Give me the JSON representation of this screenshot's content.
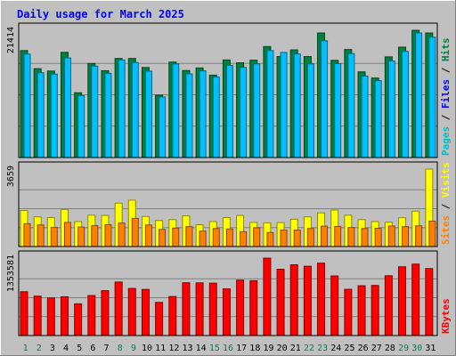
{
  "chart_data": [
    {
      "type": "bar",
      "panel": "hits-files-pages",
      "title": "Daily usage for March 2025",
      "categories": [
        "1",
        "2",
        "3",
        "4",
        "5",
        "6",
        "7",
        "8",
        "9",
        "10",
        "11",
        "12",
        "13",
        "14",
        "15",
        "16",
        "17",
        "18",
        "19",
        "20",
        "21",
        "22",
        "23",
        "24",
        "25",
        "26",
        "27",
        "28",
        "29",
        "30",
        "31"
      ],
      "weekend_days": [
        "1",
        "2",
        "8",
        "9",
        "15",
        "16",
        "22",
        "23",
        "29",
        "30"
      ],
      "ymax": 21414,
      "tick_label": "21414",
      "right_labels": [
        "Pages",
        "Files",
        "Hits"
      ],
      "series": [
        {
          "name": "Hits",
          "color": "#008040",
          "values": [
            18000,
            14950,
            14550,
            17700,
            10900,
            15820,
            14610,
            16670,
            16670,
            15150,
            10500,
            16060,
            14640,
            15070,
            13860,
            16420,
            15940,
            16380,
            18670,
            16990,
            18110,
            16990,
            20960,
            16350,
            18180,
            14420,
            13380,
            16940,
            18570,
            21414,
            20960
          ]
        },
        {
          "name": "Files",
          "color": "#00c0ff",
          "values": [
            17400,
            14270,
            14040,
            16760,
            10400,
            15380,
            14180,
            16420,
            15980,
            14530,
            10190,
            15740,
            14080,
            14590,
            13540,
            15500,
            15160,
            15780,
            18000,
            17680,
            17430,
            15760,
            19640,
            15800,
            17490,
            13710,
            12940,
            16240,
            17860,
            20960,
            20250
          ]
        },
        {
          "name": "Pages",
          "color": "#00c0ff",
          "values": [
            0,
            0,
            0,
            0,
            0,
            0,
            0,
            0,
            0,
            0,
            0,
            0,
            0,
            0,
            0,
            0,
            0,
            0,
            0,
            0,
            0,
            0,
            0,
            0,
            0,
            0,
            0,
            0,
            0,
            0,
            0
          ]
        }
      ]
    },
    {
      "type": "bar",
      "panel": "visits-sites",
      "categories": [
        "1",
        "2",
        "3",
        "4",
        "5",
        "6",
        "7",
        "8",
        "9",
        "10",
        "11",
        "12",
        "13",
        "14",
        "15",
        "16",
        "17",
        "18",
        "19",
        "20",
        "21",
        "22",
        "23",
        "24",
        "25",
        "26",
        "27",
        "28",
        "29",
        "30",
        "31"
      ],
      "ymax": 3659,
      "tick_label": "3659",
      "right_labels": [
        "Sites",
        "Visits"
      ],
      "series": [
        {
          "name": "Visits",
          "color": "#ffff00",
          "values": [
            1700,
            1400,
            1370,
            1750,
            1180,
            1480,
            1470,
            2050,
            2190,
            1420,
            1230,
            1270,
            1450,
            1030,
            1180,
            1370,
            1470,
            1140,
            1120,
            1130,
            1290,
            1400,
            1590,
            1720,
            1480,
            1270,
            1180,
            1150,
            1360,
            1670,
            3659
          ]
        },
        {
          "name": "Sites",
          "color": "#ff8000",
          "values": [
            1080,
            1020,
            900,
            1140,
            920,
            990,
            1030,
            1110,
            1330,
            1020,
            810,
            870,
            940,
            730,
            850,
            830,
            700,
            890,
            660,
            780,
            780,
            850,
            960,
            950,
            900,
            850,
            860,
            970,
            940,
            980,
            1200
          ]
        }
      ]
    },
    {
      "type": "bar",
      "panel": "kbytes",
      "categories": [
        "1",
        "2",
        "3",
        "4",
        "5",
        "6",
        "7",
        "8",
        "9",
        "10",
        "11",
        "12",
        "13",
        "14",
        "15",
        "16",
        "17",
        "18",
        "19",
        "20",
        "21",
        "22",
        "23",
        "24",
        "25",
        "26",
        "27",
        "28",
        "29",
        "30",
        "31"
      ],
      "ymax": 1353581,
      "tick_label": "1353581",
      "right_labels": [
        "KBytes"
      ],
      "series": [
        {
          "name": "KBytes",
          "color": "#ff0000",
          "values": [
            766000,
            689000,
            657000,
            677000,
            554000,
            699000,
            784000,
            935000,
            823000,
            806000,
            580000,
            682000,
            923000,
            921000,
            916000,
            816000,
            968000,
            958000,
            1353581,
            1159000,
            1237000,
            1211000,
            1266000,
            1042000,
            808000,
            871000,
            876000,
            1045000,
            1202000,
            1249000,
            1171000
          ]
        }
      ]
    }
  ]
}
